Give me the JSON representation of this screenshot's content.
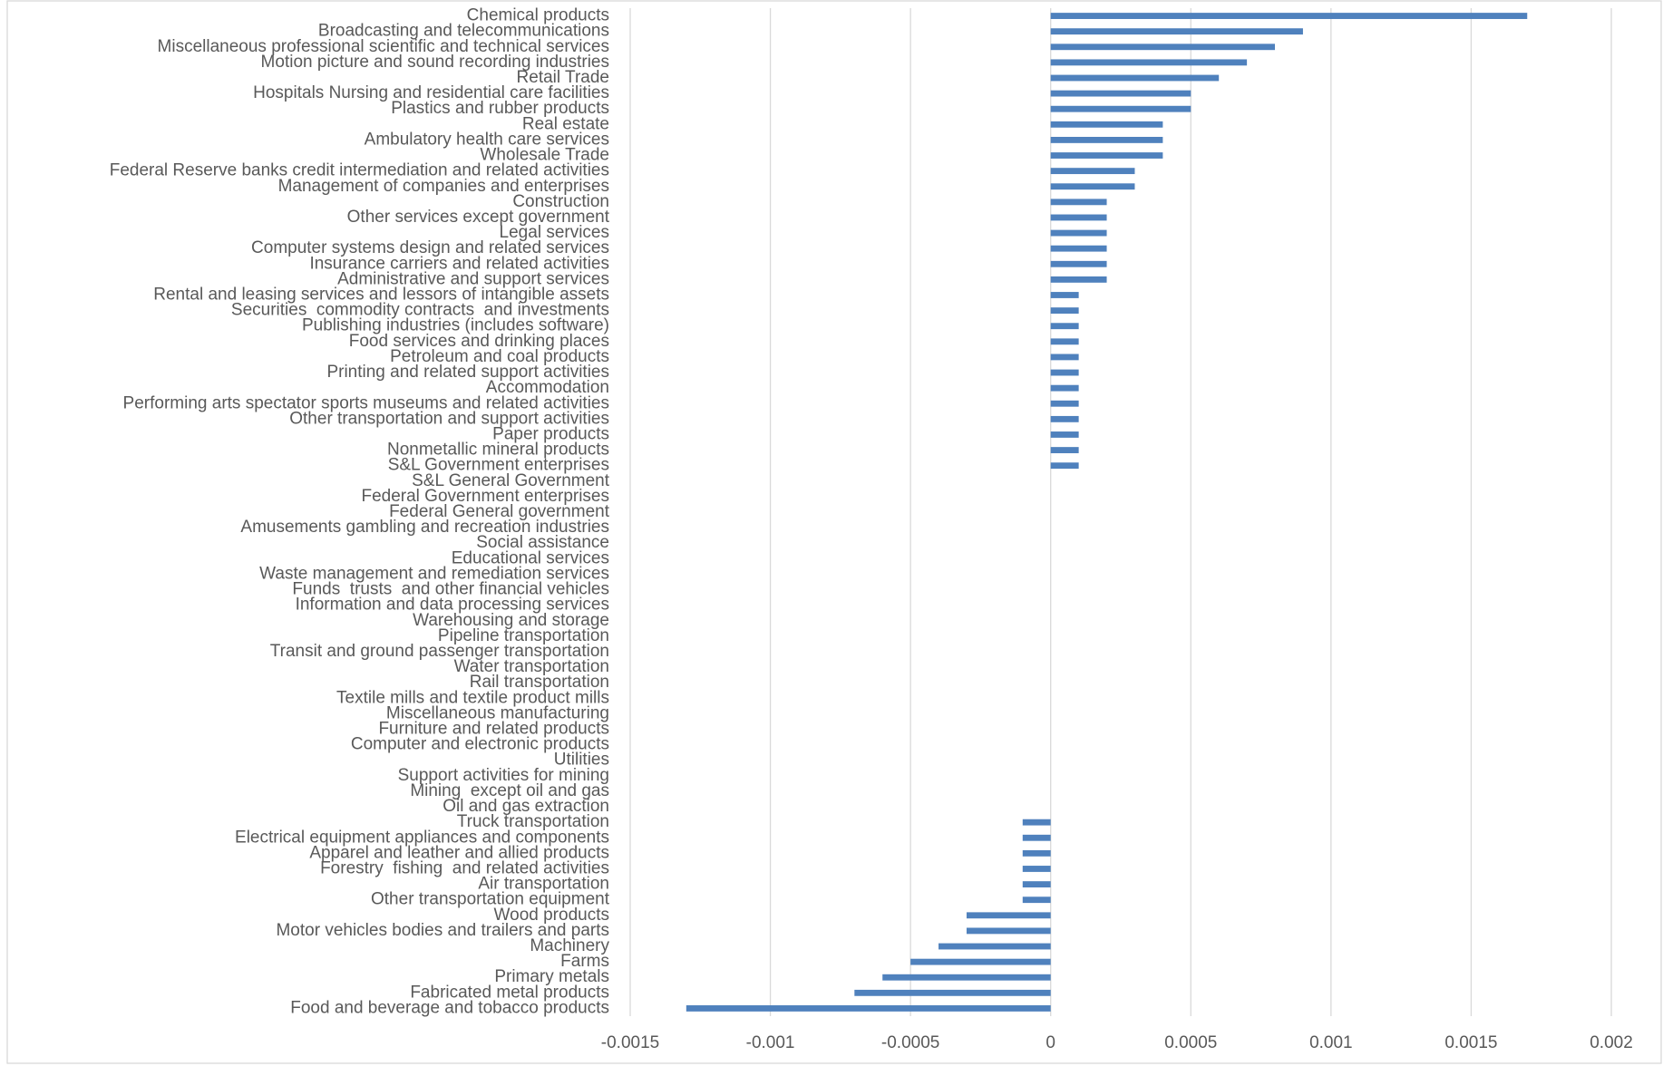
{
  "chart_data": {
    "type": "hbar",
    "color": "#4f81bd",
    "grid": true,
    "categories": [
      "Chemical products",
      "Broadcasting and telecommunications",
      "Miscellaneous professional scientific and technical services",
      "Motion picture and sound recording industries",
      "Retail Trade",
      "Hospitals Nursing and residential care facilities",
      "Plastics and rubber products",
      "Real estate",
      "Ambulatory health care services",
      "Wholesale Trade",
      "Federal Reserve banks credit intermediation and related activities",
      "Management of companies and enterprises",
      "Construction",
      "Other services except government",
      "Legal services",
      "Computer systems design and related services",
      "Insurance carriers and related activities",
      "Administrative and support services",
      "Rental and leasing services and lessors of intangible assets",
      "Securities  commodity contracts  and investments",
      "Publishing industries (includes software)",
      "Food services and drinking places",
      "Petroleum and coal products",
      "Printing and related support activities",
      "Accommodation",
      "Performing arts spectator sports museums and related activities",
      "Other transportation and support activities",
      "Paper products",
      "Nonmetallic mineral products",
      "S&L Government enterprises",
      "S&L General Government",
      "Federal Government enterprises",
      "Federal General government",
      "Amusements gambling and recreation industries",
      "Social assistance",
      "Educational services",
      "Waste management and remediation services",
      "Funds  trusts  and other financial vehicles",
      "Information and data processing services",
      "Warehousing and storage",
      "Pipeline transportation",
      "Transit and ground passenger transportation",
      "Water transportation",
      "Rail transportation",
      "Textile mills and textile product mills",
      "Miscellaneous manufacturing",
      "Furniture and related products",
      "Computer and electronic products",
      "Utilities",
      "Support activities for mining",
      "Mining  except oil and gas",
      "Oil and gas extraction",
      "Truck transportation",
      "Electrical equipment appliances and components",
      "Apparel and leather and allied products",
      "Forestry  fishing  and related activities",
      "Air transportation",
      "Other transportation equipment",
      "Wood products",
      "Motor vehicles bodies and trailers and parts",
      "Machinery",
      "Farms",
      "Primary metals",
      "Fabricated metal products",
      "Food and beverage and tobacco products"
    ],
    "values": [
      0.0017,
      0.0009,
      0.0008,
      0.0007,
      0.0006,
      0.0005,
      0.0005,
      0.0004,
      0.0004,
      0.0004,
      0.0003,
      0.0003,
      0.0002,
      0.0002,
      0.0002,
      0.0002,
      0.0002,
      0.0002,
      0.0001,
      0.0001,
      0.0001,
      0.0001,
      0.0001,
      0.0001,
      0.0001,
      0.0001,
      0.0001,
      0.0001,
      0.0001,
      0.0001,
      0,
      0,
      0,
      0,
      0,
      0,
      0,
      0,
      0,
      0,
      0,
      0,
      0,
      0,
      0,
      0,
      0,
      0,
      0,
      0,
      0,
      0,
      -0.0001,
      -0.0001,
      -0.0001,
      -0.0001,
      -0.0001,
      -0.0001,
      -0.0003,
      -0.0003,
      -0.0004,
      -0.0005,
      -0.0006,
      -0.0007,
      -0.0013
    ],
    "xlim": [
      -0.0015,
      0.002
    ],
    "xticks": [
      -0.0015,
      -0.001,
      -0.0005,
      0,
      0.0005,
      0.001,
      0.0015,
      0.002
    ]
  }
}
